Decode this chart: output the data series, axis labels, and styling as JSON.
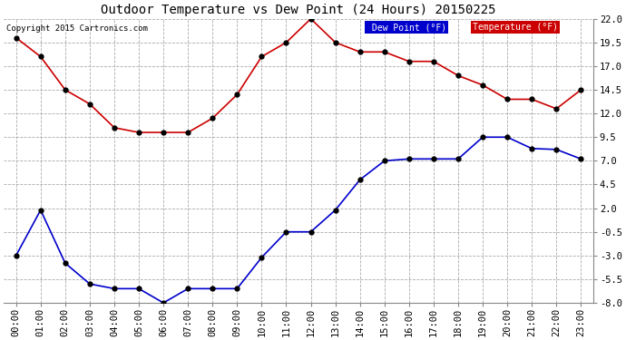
{
  "title": "Outdoor Temperature vs Dew Point (24 Hours) 20150225",
  "copyright": "Copyright 2015 Cartronics.com",
  "hours": [
    "00:00",
    "01:00",
    "02:00",
    "03:00",
    "04:00",
    "05:00",
    "06:00",
    "07:00",
    "08:00",
    "09:00",
    "10:00",
    "11:00",
    "12:00",
    "13:00",
    "14:00",
    "15:00",
    "16:00",
    "17:00",
    "18:00",
    "19:00",
    "20:00",
    "21:00",
    "22:00",
    "23:00"
  ],
  "temperature": [
    20.0,
    18.0,
    14.5,
    13.0,
    10.5,
    10.0,
    10.0,
    10.0,
    11.5,
    14.0,
    18.0,
    19.5,
    22.0,
    19.5,
    18.5,
    18.5,
    17.5,
    17.5,
    16.0,
    15.0,
    13.5,
    13.5,
    12.5,
    14.5
  ],
  "dew_point": [
    -3.0,
    1.8,
    -3.8,
    -6.0,
    -6.5,
    -6.5,
    -8.0,
    -6.5,
    -6.5,
    -6.5,
    -3.2,
    -0.5,
    -0.5,
    1.8,
    5.0,
    7.0,
    7.2,
    7.2,
    7.2,
    9.5,
    9.5,
    8.3,
    8.2,
    7.2
  ],
  "temp_color": "#cc0000",
  "dew_color": "#0000cc",
  "marker_color": "#000000",
  "ylim_min": -8.0,
  "ylim_max": 22.0,
  "yticks": [
    -8.0,
    -5.5,
    -3.0,
    -0.5,
    2.0,
    4.5,
    7.0,
    9.5,
    12.0,
    14.5,
    17.0,
    19.5,
    22.0
  ],
  "bg_color": "#ffffff",
  "grid_color": "#aaaaaa",
  "legend_dew_bg": "#0000cc",
  "legend_temp_bg": "#cc0000",
  "legend_text_color": "#ffffff",
  "title_fontsize": 10,
  "tick_fontsize": 7.5
}
